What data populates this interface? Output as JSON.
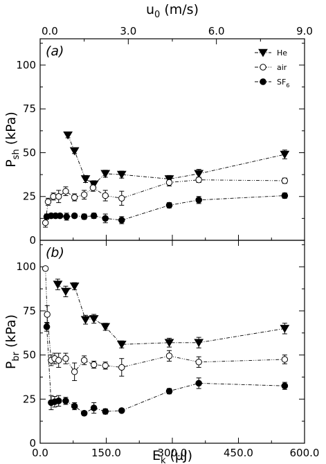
{
  "chart_data": {
    "type": "scatter",
    "x_label": {
      "base": "E",
      "sub": "k",
      "rest": " (µJ)"
    },
    "x_ticks": [
      "0.0",
      "150.0",
      "300.0",
      "450.0",
      "600.0"
    ],
    "x_range": [
      0,
      600
    ],
    "top_axis": {
      "label": {
        "base": "u",
        "sub": "0",
        "rest": " (m/s)"
      },
      "ticks": [
        "0.0",
        "3.0",
        "6.0",
        "9.0"
      ]
    },
    "legend": [
      {
        "label": "He",
        "marker": "triangle-down-filled"
      },
      {
        "label": "air",
        "marker": "circle-open"
      },
      {
        "label": "SF",
        "sub": "6",
        "marker": "circle-filled"
      }
    ],
    "panels": [
      {
        "id": "a",
        "tag": "(a)",
        "y_label": {
          "base": "P",
          "sub": "sh",
          "rest": " (kPa)"
        },
        "y_range": [
          0,
          115
        ],
        "y_ticks": [
          "0",
          "25",
          "50",
          "75",
          "100"
        ],
        "series": [
          {
            "name": "He",
            "marker": "triangle-down-filled",
            "x": [
              63,
              78,
              103,
              122,
              148,
              185,
              293,
              360,
              555
            ],
            "y": [
              60,
              51,
              35,
              32,
              38,
              37.5,
              35,
              38,
              49
            ],
            "err": [
              1.5,
              1.5,
              2,
              2,
              2,
              2,
              2,
              2.5,
              2.5
            ]
          },
          {
            "name": "air",
            "marker": "circle-open",
            "x": [
              12,
              18,
              30,
              42,
              58,
              78,
              100,
              120,
              148,
              185,
              293,
              360,
              555
            ],
            "y": [
              10,
              22,
              25,
              25,
              28,
              24.5,
              26,
              30,
              25.5,
              24,
              33,
              34.5,
              34
            ],
            "err": [
              2.5,
              2,
              2,
              3.5,
              2.5,
              2,
              2.5,
              2,
              3,
              4,
              2,
              1.5,
              1.5
            ]
          },
          {
            "name": "SF6",
            "marker": "circle-filled",
            "x": [
              15,
              25,
              35,
              45,
              60,
              78,
              100,
              122,
              148,
              185,
              293,
              360,
              555
            ],
            "y": [
              13.5,
              14,
              14,
              14,
              13.5,
              14,
              13.5,
              14,
              12.5,
              11.5,
              20,
              23,
              25.5
            ],
            "err": [
              1.5,
              1.2,
              1.2,
              1.2,
              2,
              1.2,
              1.5,
              1.5,
              2.5,
              2,
              1.5,
              2,
              1.5
            ]
          }
        ]
      },
      {
        "id": "b",
        "tag": "(b)",
        "y_label": {
          "base": "P",
          "sub": "br",
          "rest": " (kPa)"
        },
        "y_range": [
          0,
          115
        ],
        "y_ticks": [
          "0",
          "25",
          "50",
          "75",
          "100"
        ],
        "series": [
          {
            "name": "He",
            "marker": "triangle-down-filled",
            "x": [
              40,
              58,
              78,
              103,
              122,
              148,
              185,
              293,
              360,
              555
            ],
            "y": [
              90,
              86,
              89,
              70,
              70.5,
              66,
              56,
              57,
              57,
              65
            ],
            "err": [
              3,
              3,
              2,
              2.5,
              2.5,
              2,
              2,
              2.5,
              3,
              3
            ]
          },
          {
            "name": "air",
            "marker": "circle-open",
            "x": [
              12,
              16,
              25,
              33,
              42,
              58,
              78,
              100,
              122,
              148,
              185,
              293,
              360,
              555
            ],
            "y": [
              99,
              73,
              47,
              48,
              47,
              48,
              40.5,
              47,
              44.5,
              44,
              43,
              49.5,
              46,
              47.5
            ],
            "err": [
              1,
              5,
              3,
              3,
              4,
              3,
              5,
              2.5,
              2,
              2,
              5,
              3,
              3,
              2.5
            ]
          },
          {
            "name": "SF6",
            "marker": "circle-filled",
            "x": [
              15,
              25,
              33,
              42,
              58,
              78,
              100,
              122,
              148,
              185,
              293,
              360,
              555
            ],
            "y": [
              66,
              23,
              23.5,
              24,
              24,
              21,
              17,
              20,
              18,
              18.5,
              29.5,
              34,
              32.5
            ],
            "err": [
              2.5,
              4,
              3,
              3,
              2,
              2,
              1.2,
              3,
              1.5,
              1,
              1.5,
              3,
              2
            ]
          }
        ]
      }
    ]
  }
}
